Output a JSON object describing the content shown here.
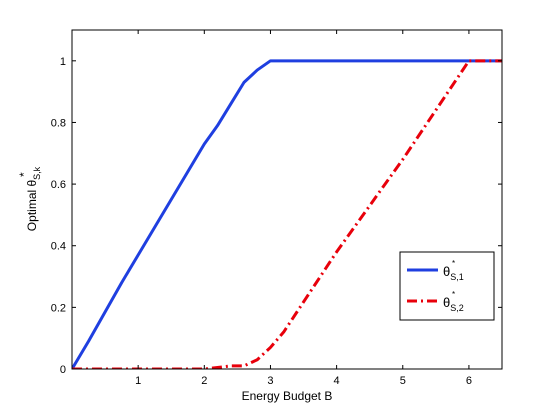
{
  "chart_data": {
    "type": "line",
    "title": "",
    "xlabel": "Energy Budget B",
    "ylabel": {
      "prefix": "Optimal ",
      "symbol": "θ",
      "superscript": "*",
      "subscript": "S,k"
    },
    "xlim": [
      0,
      6.5
    ],
    "ylim": [
      0,
      1.1
    ],
    "xticks": [
      1,
      2,
      3,
      4,
      5,
      6
    ],
    "yticks": [
      0,
      0.2,
      0.4,
      0.6,
      0.8,
      1
    ],
    "xtick_labels": [
      "1",
      "2",
      "3",
      "4",
      "5",
      "6"
    ],
    "ytick_labels": [
      "0",
      "0.2",
      "0.4",
      "0.6",
      "0.8",
      "1"
    ],
    "grid": false,
    "legend_position": "right-lower",
    "series": [
      {
        "name": "θ*S,1",
        "legend": {
          "symbol": "θ",
          "superscript": "*",
          "subscript": "S,1"
        },
        "color": "#1f3fe0",
        "style": "solid",
        "x": [
          0,
          0.25,
          0.5,
          0.75,
          1.0,
          1.25,
          1.5,
          1.75,
          2.0,
          2.2,
          2.4,
          2.6,
          2.8,
          3.0,
          4.0,
          5.0,
          6.0,
          6.5
        ],
        "y": [
          0,
          0.09,
          0.185,
          0.28,
          0.37,
          0.46,
          0.55,
          0.64,
          0.73,
          0.79,
          0.86,
          0.93,
          0.97,
          1.0,
          1.0,
          1.0,
          1.0,
          1.0
        ]
      },
      {
        "name": "θ*S,2",
        "legend": {
          "symbol": "θ",
          "superscript": "*",
          "subscript": "S,2"
        },
        "color": "#e8000b",
        "style": "dashdot",
        "x": [
          0,
          1.0,
          2.0,
          2.2,
          2.4,
          2.6,
          2.8,
          3.0,
          3.2,
          3.4,
          3.6,
          3.8,
          4.0,
          4.5,
          5.0,
          5.5,
          6.0,
          6.5
        ],
        "y": [
          0,
          0,
          0,
          0.005,
          0.01,
          0.01,
          0.03,
          0.07,
          0.12,
          0.185,
          0.25,
          0.315,
          0.38,
          0.53,
          0.68,
          0.84,
          1.0,
          1.0
        ]
      }
    ]
  }
}
